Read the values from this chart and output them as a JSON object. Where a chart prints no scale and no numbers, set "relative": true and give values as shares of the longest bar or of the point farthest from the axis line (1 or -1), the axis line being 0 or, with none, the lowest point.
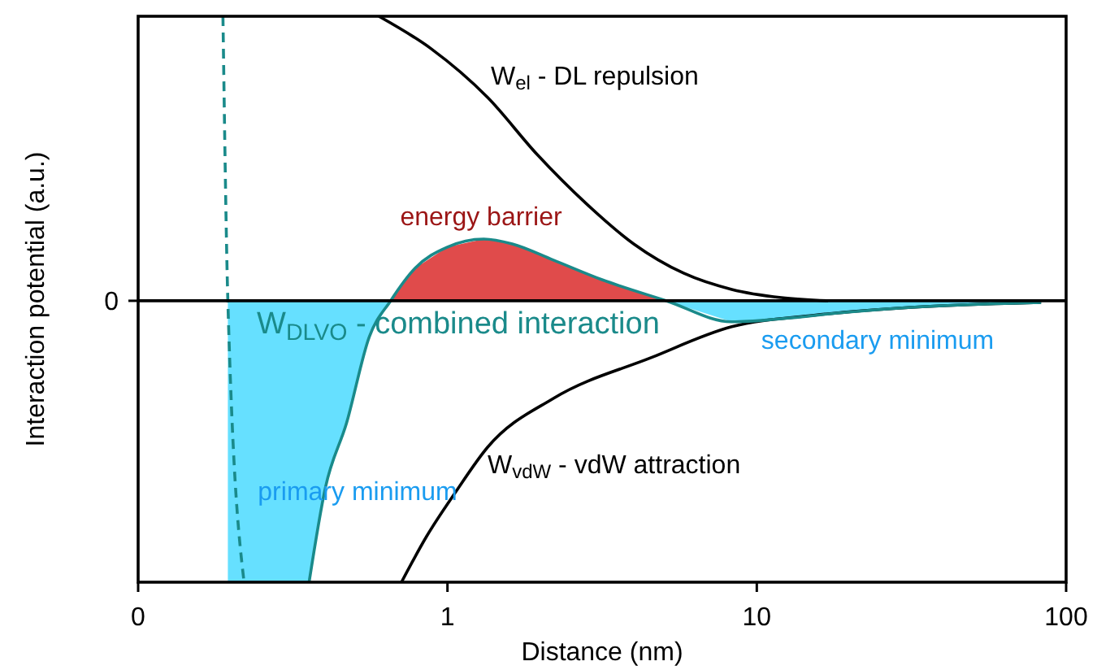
{
  "chart_data": {
    "type": "line",
    "relative": true,
    "log": "x",
    "xlabel": "Distance (nm)",
    "ylabel": "Interaction potential (a.u.)",
    "xlim": [
      0.1,
      100
    ],
    "xticks": [
      {
        "value": 0.1,
        "label": "0"
      },
      1,
      10,
      100
    ],
    "ref_lines": [
      {
        "axis": "y",
        "value": 0,
        "label": "0",
        "color": "#000000"
      }
    ],
    "annotations": [
      "energy barrier",
      "primary minimum",
      "secondary minimum"
    ],
    "series": [
      {
        "type": "area",
        "color": "#66e0ff",
        "x": [
          0.195,
          0.357,
          0.403,
          0.472,
          0.559,
          0.655
        ],
        "values": [
          -0.989,
          -0.989,
          -0.657,
          -0.429,
          -0.126,
          0
        ]
      },
      {
        "type": "area",
        "color": "#e04b4b",
        "x": [
          0.655,
          0.785,
          1,
          1.31,
          1.62,
          2.2,
          3.16,
          5.1
        ],
        "values": [
          0,
          0.114,
          0.189,
          0.217,
          0.2,
          0.143,
          0.074,
          0
        ]
      },
      {
        "type": "area",
        "color": "#66e0ff",
        "x": [
          5.1,
          8.3,
          12,
          19.5,
          31.6,
          83
        ],
        "values": [
          0,
          -0.074,
          -0.063,
          -0.04,
          -0.023,
          -0.006
        ]
      },
      {
        "name": "W$_{el}$ - DL repulsion",
        "color": "#000000",
        "x": [
          0.6,
          0.885,
          1.35,
          1.95,
          2.8,
          4.0,
          5.8,
          8.3,
          12,
          17
        ],
        "values": [
          1,
          0.886,
          0.714,
          0.514,
          0.343,
          0.2,
          0.097,
          0.04,
          0.011,
          0
        ]
      },
      {
        "name": "W$_{vdW}$ - vdW attraction",
        "color": "#000000",
        "x": [
          0.71,
          0.855,
          1.06,
          1.35,
          2.2,
          4.55,
          8.3,
          15.3,
          31.6,
          83
        ],
        "values": [
          -0.989,
          -0.829,
          -0.674,
          -0.514,
          -0.343,
          -0.2,
          -0.091,
          -0.051,
          -0.023,
          -0.006
        ]
      },
      {
        "name": "W$_{DLVO}$ - combined interaction",
        "color": "#1a8a8a",
        "x": [
          0.357,
          0.403,
          0.472,
          0.559,
          0.655,
          0.785,
          1,
          1.31,
          1.62,
          2.2,
          3.16,
          5.1,
          8.3,
          12,
          19.5,
          31.6,
          83
        ],
        "values": [
          -0.989,
          -0.657,
          -0.429,
          -0.126,
          0,
          0.114,
          0.189,
          0.217,
          0.2,
          0.143,
          0.074,
          0,
          -0.074,
          -0.063,
          -0.04,
          -0.023,
          -0.006
        ]
      },
      {
        "line_style": "dashed",
        "color": "#1a8a8a",
        "x": [
          0.188,
          0.195,
          0.22
        ],
        "values": [
          1,
          0,
          -0.989
        ]
      }
    ]
  }
}
